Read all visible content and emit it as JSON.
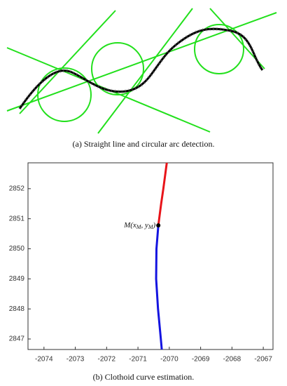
{
  "figure_a": {
    "caption": "(a)  Straight line and circular arc detection."
  },
  "chart_data": {
    "type": "line",
    "caption": "(b)  Clothoid curve estimation.",
    "annotation": [
      "M(",
      "x",
      "M",
      ", ",
      "y",
      "M",
      ")"
    ],
    "xlim": [
      -2074.51,
      -2066.69
    ],
    "ylim": [
      2846.65,
      2852.86
    ],
    "xticks": [
      -2074,
      -2073,
      -2072,
      -2071,
      -2070,
      -2069,
      -2068,
      -2067
    ],
    "yticks": [
      2847,
      2848,
      2849,
      2850,
      2851,
      2852
    ],
    "series": [
      {
        "color": "#e8141a",
        "x": [
          -2070.35,
          -2070.26,
          -2070.19,
          -2070.08
        ],
        "values": [
          2850.78,
          2851.5,
          2852,
          2852.86
        ]
      },
      {
        "color": "#1414e0",
        "x": [
          -2070.35,
          -2070.41,
          -2070.42,
          -2070.36,
          -2070.27,
          -2070.24
        ],
        "values": [
          2850.78,
          2850,
          2849,
          2848,
          2847,
          2846.65
        ]
      }
    ],
    "marker": {
      "x": -2070.35,
      "y": 2850.78,
      "color": "#000000"
    }
  }
}
